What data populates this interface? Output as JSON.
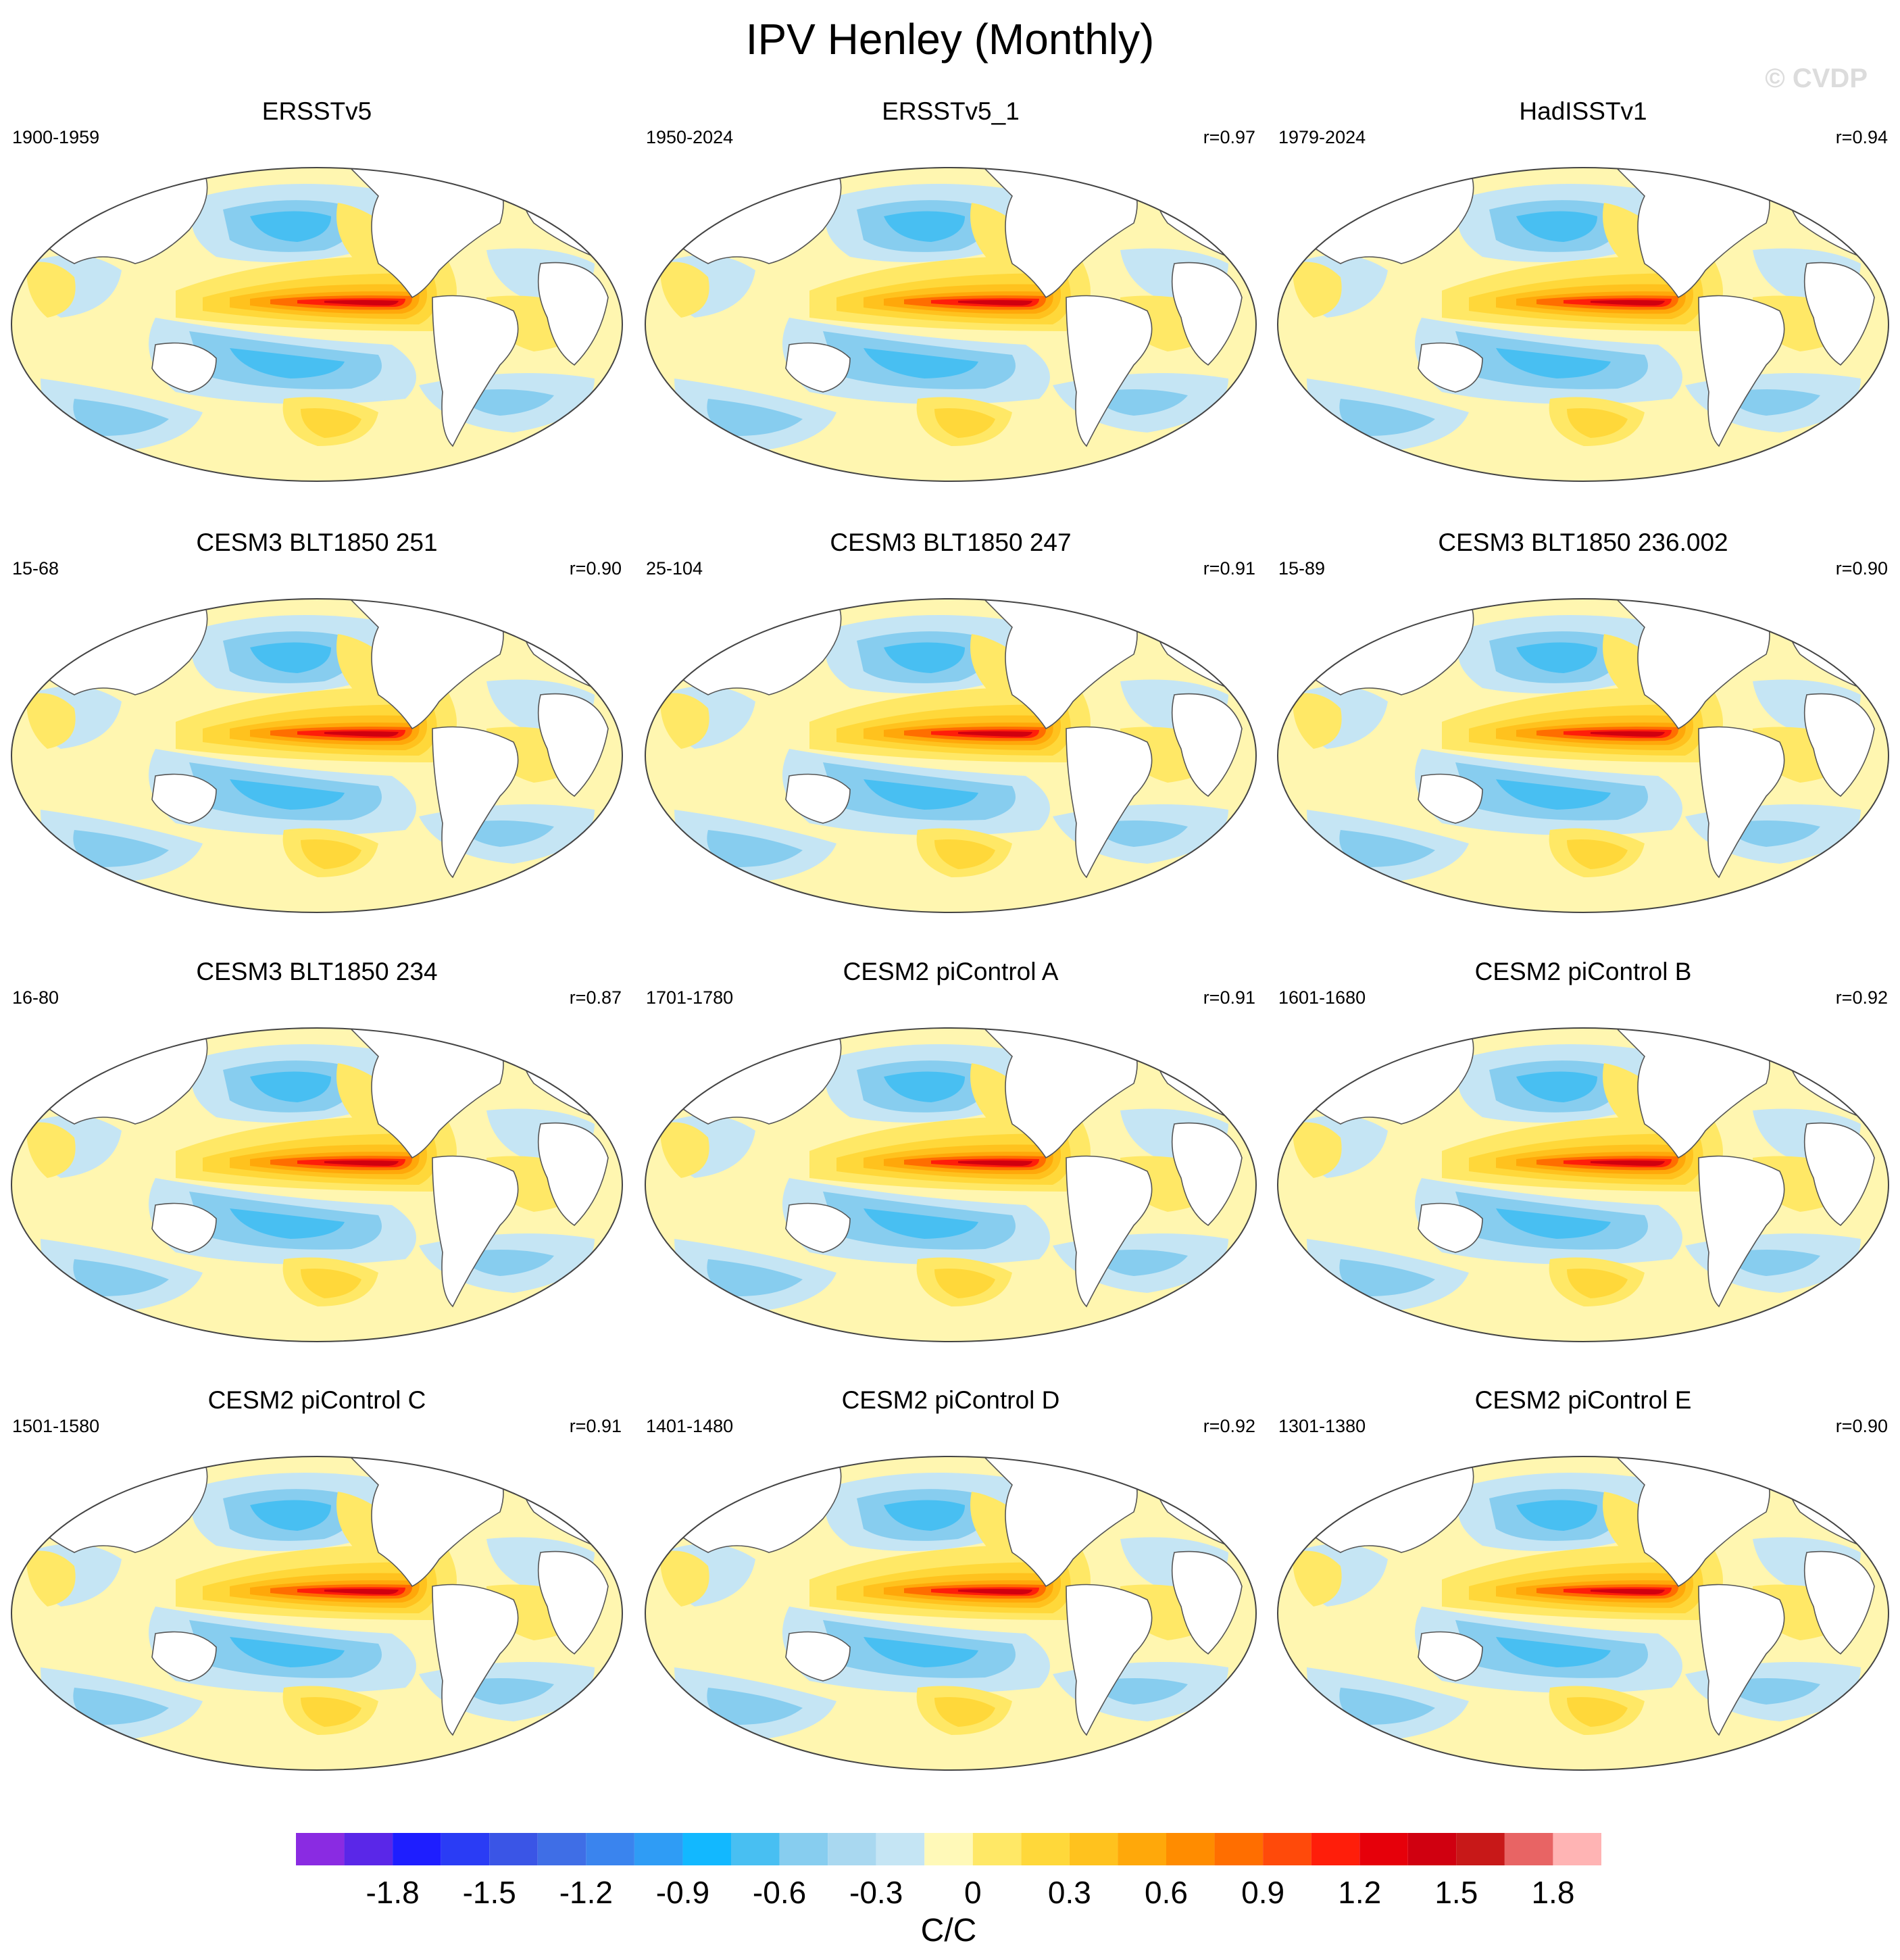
{
  "figure": {
    "title": "IPV Henley (Monthly)",
    "watermark": "© CVDP"
  },
  "panels": [
    {
      "title": "ERSSTv5",
      "period": "1900-1959",
      "corr": ""
    },
    {
      "title": "ERSSTv5_1",
      "period": "1950-2024",
      "corr": "r=0.97"
    },
    {
      "title": "HadISSTv1",
      "period": "1979-2024",
      "corr": "r=0.94"
    },
    {
      "title": "CESM3 BLT1850 251",
      "period": "15-68",
      "corr": "r=0.90"
    },
    {
      "title": "CESM3 BLT1850 247",
      "period": "25-104",
      "corr": "r=0.91"
    },
    {
      "title": "CESM3 BLT1850 236.002",
      "period": "15-89",
      "corr": "r=0.90"
    },
    {
      "title": "CESM3 BLT1850 234",
      "period": "16-80",
      "corr": "r=0.87"
    },
    {
      "title": "CESM2 piControl A",
      "period": "1701-1780",
      "corr": "r=0.91"
    },
    {
      "title": "CESM2 piControl B",
      "period": "1601-1680",
      "corr": "r=0.92"
    },
    {
      "title": "CESM2 piControl C",
      "period": "1501-1580",
      "corr": "r=0.91"
    },
    {
      "title": "CESM2 piControl D",
      "period": "1401-1480",
      "corr": "r=0.92"
    },
    {
      "title": "CESM2 piControl E",
      "period": "1301-1380",
      "corr": "r=0.90"
    }
  ],
  "colorbar": {
    "unit_label": "C/C",
    "tick_labels": [
      "-1.8",
      "-1.5",
      "-1.2",
      "-0.9",
      "-0.6",
      "-0.3",
      "0",
      "0.3",
      "0.6",
      "0.9",
      "1.2",
      "1.5",
      "1.8"
    ],
    "colors": [
      "#8a2be2",
      "#5a27e8",
      "#1e1eff",
      "#2a3cf5",
      "#3a55e6",
      "#3f6ee6",
      "#3a84ee",
      "#2f9cf5",
      "#12b8ff",
      "#48bff2",
      "#87cdef",
      "#a9d8f0",
      "#c5e5f4",
      "#fff9b8",
      "#ffe866",
      "#ffd83a",
      "#ffc21e",
      "#ffa80a",
      "#ff8c00",
      "#ff6e00",
      "#ff4a0a",
      "#ff1e0a",
      "#e6000a",
      "#d00010",
      "#c81818",
      "#e86464",
      "#ffb4b4"
    ]
  }
}
